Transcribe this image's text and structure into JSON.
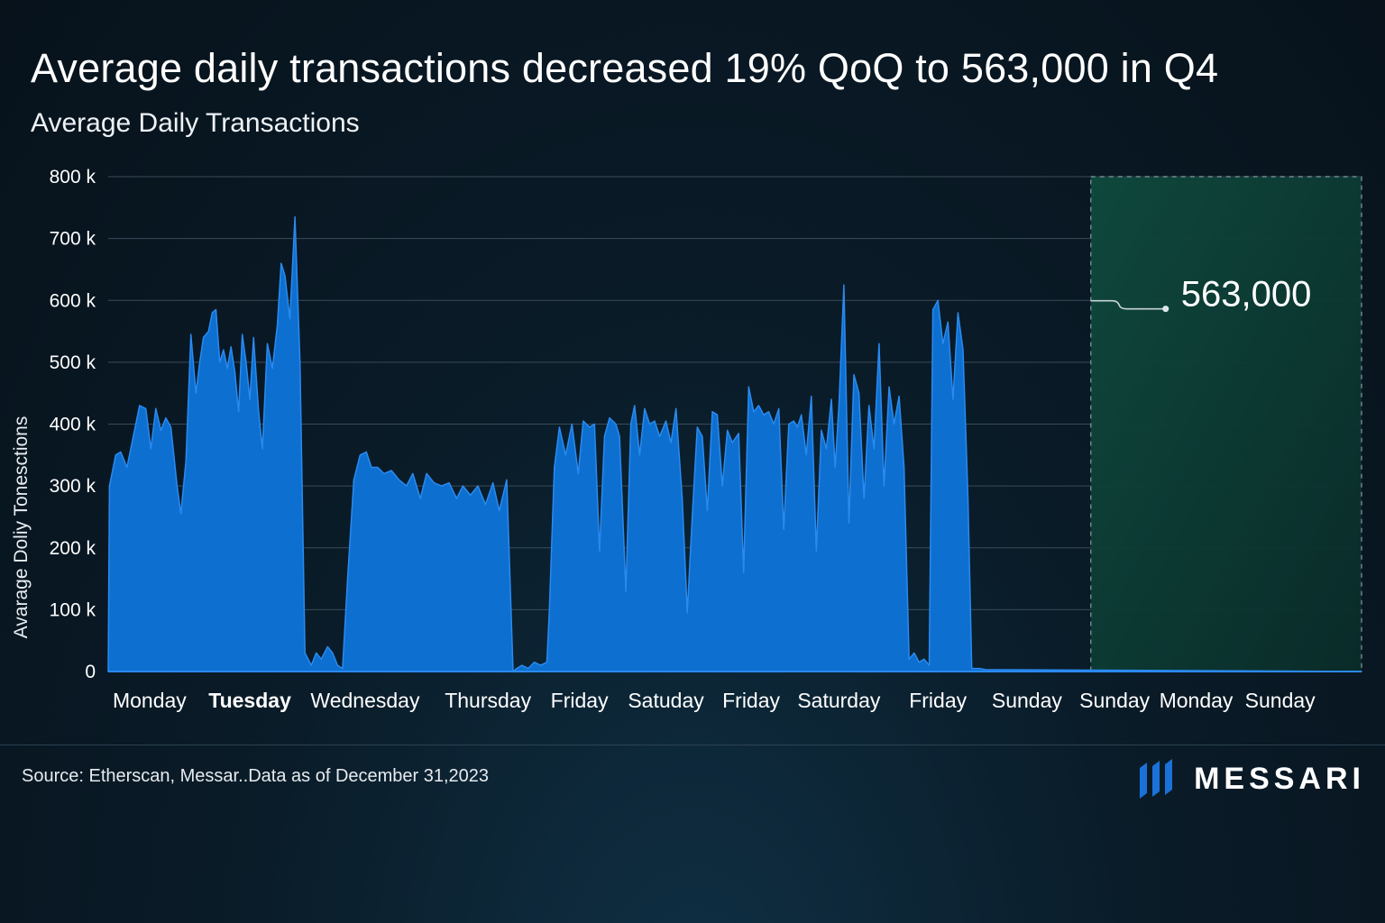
{
  "title": "Average daily transactions decreased 19% QoQ to 563,000 in Q4",
  "subtitle": "Average Daily Transactions",
  "source": "Source: Etherscan, Messar..Data as of December 31,2023",
  "brand": "MESSARI",
  "colors": {
    "area": "#0d6fcf",
    "area_edge": "#2a8af0",
    "highlight_fill": "#0f4a3e",
    "grid": "#3a4b58",
    "text": "#ffffff"
  },
  "chart_data": {
    "type": "area",
    "title": "Average Daily Transactions",
    "ylabel": "Avarage Doliy Tonesctions",
    "xlabel": "",
    "ylim": [
      0,
      800000
    ],
    "yticks": [
      {
        "value": 0,
        "label": "0"
      },
      {
        "value": 100000,
        "label": "100 k"
      },
      {
        "value": 200000,
        "label": "200 k"
      },
      {
        "value": 300000,
        "label": "300 k"
      },
      {
        "value": 400000,
        "label": "400 k"
      },
      {
        "value": 500000,
        "label": "500 k"
      },
      {
        "value": 600000,
        "label": "600 k"
      },
      {
        "value": 700000,
        "label": "700 k"
      },
      {
        "value": 800000,
        "label": "800 k"
      }
    ],
    "xlim": [
      0,
      100
    ],
    "x_tick_labels": [
      {
        "label": "Monday",
        "x": 3.3,
        "bold": false
      },
      {
        "label": "Tuesday",
        "x": 11.3,
        "bold": true
      },
      {
        "label": "Wednesday",
        "x": 20.5,
        "bold": false
      },
      {
        "label": "Thursday",
        "x": 30.3,
        "bold": false
      },
      {
        "label": "Friday",
        "x": 37.6,
        "bold": false
      },
      {
        "label": "Satuday",
        "x": 44.5,
        "bold": false
      },
      {
        "label": "Friday",
        "x": 51.3,
        "bold": false
      },
      {
        "label": "Saturday",
        "x": 58.3,
        "bold": false
      },
      {
        "label": "Friday",
        "x": 66.2,
        "bold": false
      },
      {
        "label": "Sunday",
        "x": 73.3,
        "bold": false
      },
      {
        "label": "Sunday",
        "x": 80.3,
        "bold": false
      },
      {
        "label": "Monday",
        "x": 86.8,
        "bold": false
      },
      {
        "label": "Sunday",
        "x": 93.5,
        "bold": false
      }
    ],
    "highlight": {
      "x_start": 78.4,
      "x_end": 100,
      "label": "563,000",
      "value": 563000
    },
    "series": [
      {
        "name": "Average Daily Transactions",
        "points": [
          [
            0.0,
            0
          ],
          [
            0.1,
            300000
          ],
          [
            0.6,
            350000
          ],
          [
            1.0,
            355000
          ],
          [
            1.5,
            330000
          ],
          [
            2.0,
            380000
          ],
          [
            2.5,
            430000
          ],
          [
            3.0,
            425000
          ],
          [
            3.4,
            360000
          ],
          [
            3.8,
            425000
          ],
          [
            4.2,
            390000
          ],
          [
            4.6,
            410000
          ],
          [
            5.0,
            395000
          ],
          [
            5.5,
            300000
          ],
          [
            5.8,
            255000
          ],
          [
            6.2,
            340000
          ],
          [
            6.6,
            545000
          ],
          [
            7.0,
            450000
          ],
          [
            7.3,
            500000
          ],
          [
            7.6,
            540000
          ],
          [
            8.0,
            550000
          ],
          [
            8.3,
            580000
          ],
          [
            8.6,
            585000
          ],
          [
            8.9,
            500000
          ],
          [
            9.2,
            520000
          ],
          [
            9.5,
            490000
          ],
          [
            9.8,
            525000
          ],
          [
            10.1,
            485000
          ],
          [
            10.4,
            420000
          ],
          [
            10.7,
            545000
          ],
          [
            11.0,
            500000
          ],
          [
            11.3,
            440000
          ],
          [
            11.6,
            540000
          ],
          [
            12.0,
            420000
          ],
          [
            12.3,
            360000
          ],
          [
            12.7,
            530000
          ],
          [
            13.1,
            490000
          ],
          [
            13.5,
            560000
          ],
          [
            13.8,
            660000
          ],
          [
            14.1,
            640000
          ],
          [
            14.5,
            570000
          ],
          [
            14.9,
            735000
          ],
          [
            15.3,
            500000
          ],
          [
            15.7,
            30000
          ],
          [
            16.2,
            10000
          ],
          [
            16.6,
            30000
          ],
          [
            17.0,
            20000
          ],
          [
            17.5,
            40000
          ],
          [
            17.9,
            30000
          ],
          [
            18.3,
            10000
          ],
          [
            18.7,
            5000
          ],
          [
            19.1,
            150000
          ],
          [
            19.6,
            310000
          ],
          [
            20.1,
            350000
          ],
          [
            20.6,
            355000
          ],
          [
            21.0,
            330000
          ],
          [
            21.5,
            330000
          ],
          [
            22.0,
            320000
          ],
          [
            22.6,
            325000
          ],
          [
            23.2,
            310000
          ],
          [
            23.8,
            300000
          ],
          [
            24.3,
            320000
          ],
          [
            24.9,
            280000
          ],
          [
            25.4,
            320000
          ],
          [
            26.0,
            305000
          ],
          [
            26.6,
            300000
          ],
          [
            27.2,
            305000
          ],
          [
            27.8,
            280000
          ],
          [
            28.3,
            300000
          ],
          [
            28.9,
            285000
          ],
          [
            29.5,
            300000
          ],
          [
            30.1,
            270000
          ],
          [
            30.7,
            305000
          ],
          [
            31.2,
            260000
          ],
          [
            31.8,
            310000
          ],
          [
            32.3,
            0
          ],
          [
            32.6,
            5000
          ],
          [
            33.0,
            10000
          ],
          [
            33.5,
            5000
          ],
          [
            34.0,
            15000
          ],
          [
            34.5,
            10000
          ],
          [
            35.0,
            15000
          ],
          [
            35.2,
            100000
          ],
          [
            35.6,
            330000
          ],
          [
            36.0,
            395000
          ],
          [
            36.5,
            350000
          ],
          [
            37.0,
            400000
          ],
          [
            37.5,
            320000
          ],
          [
            37.9,
            405000
          ],
          [
            38.4,
            395000
          ],
          [
            38.8,
            400000
          ],
          [
            39.2,
            195000
          ],
          [
            39.6,
            380000
          ],
          [
            40.0,
            410000
          ],
          [
            40.5,
            400000
          ],
          [
            40.8,
            380000
          ],
          [
            41.3,
            130000
          ],
          [
            41.7,
            400000
          ],
          [
            42.0,
            430000
          ],
          [
            42.4,
            350000
          ],
          [
            42.8,
            425000
          ],
          [
            43.2,
            400000
          ],
          [
            43.6,
            405000
          ],
          [
            44.0,
            380000
          ],
          [
            44.5,
            405000
          ],
          [
            44.9,
            370000
          ],
          [
            45.3,
            425000
          ],
          [
            45.8,
            280000
          ],
          [
            46.2,
            95000
          ],
          [
            46.6,
            250000
          ],
          [
            47.0,
            395000
          ],
          [
            47.4,
            380000
          ],
          [
            47.8,
            260000
          ],
          [
            48.2,
            420000
          ],
          [
            48.6,
            415000
          ],
          [
            49.0,
            300000
          ],
          [
            49.4,
            390000
          ],
          [
            49.8,
            370000
          ],
          [
            50.3,
            385000
          ],
          [
            50.7,
            160000
          ],
          [
            51.1,
            460000
          ],
          [
            51.5,
            420000
          ],
          [
            51.9,
            430000
          ],
          [
            52.3,
            415000
          ],
          [
            52.7,
            420000
          ],
          [
            53.1,
            400000
          ],
          [
            53.5,
            425000
          ],
          [
            53.9,
            230000
          ],
          [
            54.3,
            400000
          ],
          [
            54.7,
            405000
          ],
          [
            55.0,
            395000
          ],
          [
            55.3,
            415000
          ],
          [
            55.7,
            350000
          ],
          [
            56.1,
            445000
          ],
          [
            56.5,
            195000
          ],
          [
            56.9,
            390000
          ],
          [
            57.3,
            360000
          ],
          [
            57.7,
            440000
          ],
          [
            58.0,
            330000
          ],
          [
            58.3,
            430000
          ],
          [
            58.7,
            625000
          ],
          [
            59.1,
            240000
          ],
          [
            59.5,
            480000
          ],
          [
            59.9,
            450000
          ],
          [
            60.3,
            280000
          ],
          [
            60.7,
            430000
          ],
          [
            61.1,
            360000
          ],
          [
            61.5,
            530000
          ],
          [
            61.9,
            300000
          ],
          [
            62.3,
            460000
          ],
          [
            62.7,
            400000
          ],
          [
            63.1,
            445000
          ],
          [
            63.5,
            330000
          ],
          [
            63.9,
            20000
          ],
          [
            64.3,
            30000
          ],
          [
            64.7,
            15000
          ],
          [
            65.1,
            20000
          ],
          [
            65.5,
            10000
          ],
          [
            65.8,
            585000
          ],
          [
            66.2,
            600000
          ],
          [
            66.6,
            530000
          ],
          [
            67.0,
            565000
          ],
          [
            67.4,
            440000
          ],
          [
            67.8,
            580000
          ],
          [
            68.2,
            520000
          ],
          [
            68.6,
            280000
          ],
          [
            68.9,
            5000
          ],
          [
            69.5,
            5000
          ],
          [
            70.0,
            3000
          ],
          [
            100.0,
            0
          ]
        ]
      }
    ]
  }
}
